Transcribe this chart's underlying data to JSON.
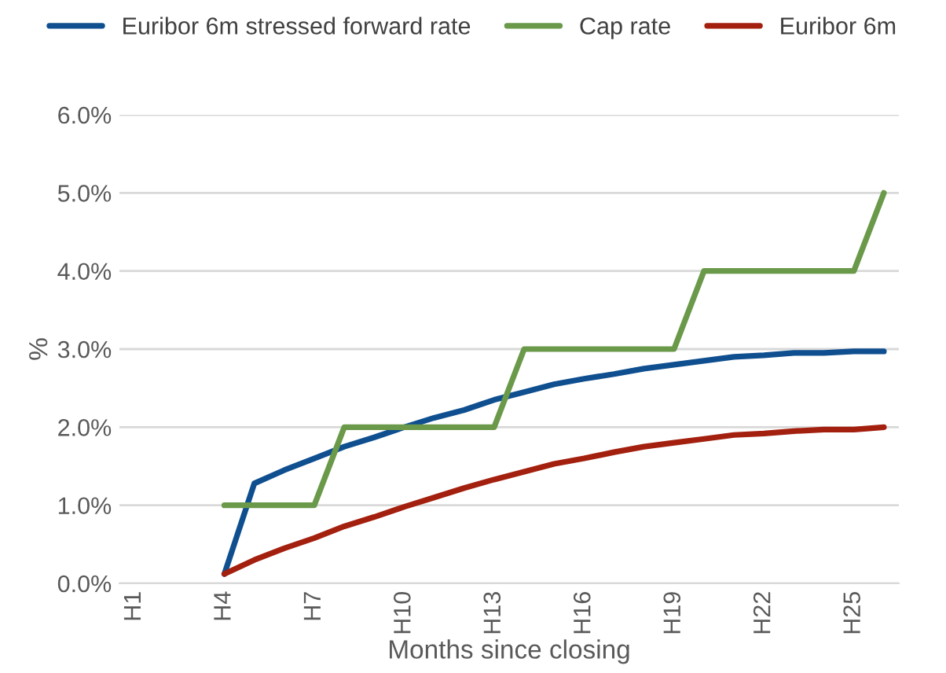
{
  "chart_data": {
    "type": "line",
    "xlabel": "Months since closing",
    "ylabel": "%",
    "categories": [
      "H1",
      null,
      null,
      "H4",
      null,
      null,
      "H7",
      null,
      null,
      "H10",
      null,
      null,
      "H13",
      null,
      null,
      "H16",
      null,
      null,
      "H19",
      null,
      null,
      "H22",
      null,
      null,
      "H25",
      null
    ],
    "series": [
      {
        "name": "Euribor 6m stressed forward rate",
        "color": "#0f4f8f",
        "values": [
          null,
          null,
          null,
          0.12,
          1.28,
          1.45,
          1.6,
          1.75,
          1.87,
          2.0,
          2.12,
          2.22,
          2.35,
          2.45,
          2.55,
          2.62,
          2.68,
          2.75,
          2.8,
          2.85,
          2.9,
          2.92,
          2.95,
          2.95,
          2.97,
          2.97
        ]
      },
      {
        "name": "Cap rate",
        "color": "#6a994a",
        "values": [
          null,
          null,
          null,
          1,
          1,
          1,
          1,
          2,
          2,
          2,
          2,
          2,
          2,
          3,
          3,
          3,
          3,
          3,
          3,
          4,
          4,
          4,
          4,
          4,
          4,
          5
        ]
      },
      {
        "name": "Euribor 6m",
        "color": "#a3200f",
        "values": [
          null,
          null,
          null,
          0.12,
          0.3,
          0.45,
          0.58,
          0.73,
          0.85,
          0.98,
          1.1,
          1.22,
          1.33,
          1.43,
          1.53,
          1.6,
          1.68,
          1.75,
          1.8,
          1.85,
          1.9,
          1.92,
          1.95,
          1.97,
          1.97,
          2.0
        ]
      }
    ],
    "ylim": [
      0,
      6
    ],
    "yticks": [
      {
        "value": 0,
        "label": "0.0%"
      },
      {
        "value": 1,
        "label": "1.0%"
      },
      {
        "value": 2,
        "label": "2.0%"
      },
      {
        "value": 3,
        "label": "3.0%"
      },
      {
        "value": 4,
        "label": "4.0%"
      },
      {
        "value": 5,
        "label": "5.0%"
      },
      {
        "value": 6,
        "label": "6.0%"
      }
    ],
    "grid": "y",
    "legend": "top",
    "marker": "none",
    "line_style": "solid"
  }
}
